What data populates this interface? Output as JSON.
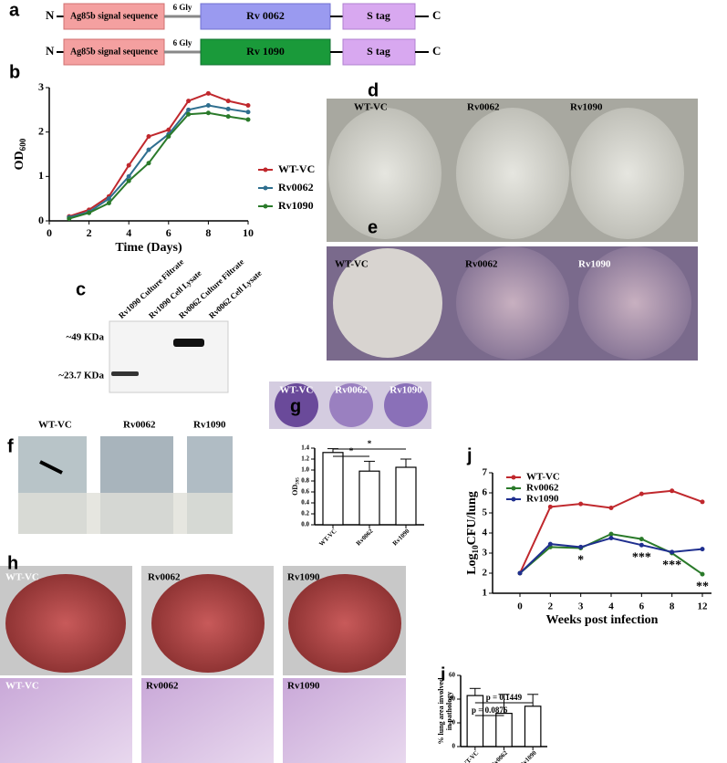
{
  "panel_labels": [
    "a",
    "b",
    "c",
    "d",
    "e",
    "f",
    "g",
    "h",
    "i",
    "j"
  ],
  "construct": {
    "rows": [
      {
        "n": "N",
        "signal": "Ag85b signal sequence",
        "linker": "6 Gly",
        "gene": "Rv 0062",
        "tag": "S tag",
        "c": "C"
      },
      {
        "n": "N",
        "signal": "Ag85b signal sequence",
        "linker": "6 Gly",
        "gene": "Rv 1090",
        "tag": "S tag",
        "c": "C"
      }
    ]
  },
  "blot": {
    "lanes": [
      "Rv1090 Culture Filtrate",
      "Rv1090 Cell Lysate",
      "Rv0062 Culture Filtrate",
      "Rv0062 Cell Lysate"
    ],
    "markers": [
      "~49 KDa",
      "~23.7 KDa"
    ]
  },
  "photos": {
    "d": [
      "WT-VC",
      "Rv0062",
      "Rv1090"
    ],
    "e": [
      "WT-VC",
      "Rv0062",
      "Rv1090"
    ],
    "f": [
      "WT-VC",
      "Rv0062",
      "Rv1090"
    ],
    "g": [
      "WT-VC",
      "Rv0062",
      "Rv1090"
    ],
    "h_gross": [
      "WT-VC",
      "Rv0062",
      "Rv1090"
    ],
    "h_histology": [
      "WT-VC",
      "Rv0062",
      "Rv1090"
    ]
  },
  "chart_data": [
    {
      "type": "line",
      "x": [
        1,
        2,
        3,
        4,
        5,
        6,
        7,
        8,
        9,
        10
      ],
      "xlim": [
        0,
        10
      ],
      "xticks": [
        0,
        2,
        4,
        6,
        8,
        10
      ],
      "ylim": [
        0,
        3
      ],
      "yticks": [
        0,
        1,
        2,
        3
      ],
      "xlabel": "Time (Days)",
      "ylabel": [
        "OD",
        "600"
      ],
      "legend": "right",
      "series": [
        {
          "name": "WT-VC",
          "color": "#c0282d",
          "values": [
            0.1,
            0.25,
            0.55,
            1.25,
            1.9,
            2.05,
            2.7,
            2.87,
            2.7,
            2.6
          ]
        },
        {
          "name": "Rv0062",
          "color": "#2f6f8f",
          "values": [
            0.08,
            0.2,
            0.5,
            1.0,
            1.6,
            1.95,
            2.5,
            2.6,
            2.52,
            2.45
          ]
        },
        {
          "name": "Rv1090",
          "color": "#2a7a2a",
          "values": [
            0.05,
            0.18,
            0.4,
            0.9,
            1.3,
            1.9,
            2.4,
            2.43,
            2.35,
            2.28
          ]
        }
      ]
    },
    {
      "type": "bar",
      "categories": [
        "WT-VC",
        "Rv0062",
        "Rv1090"
      ],
      "values": [
        1.32,
        0.98,
        1.05
      ],
      "errors": [
        0.07,
        0.18,
        0.15
      ],
      "color": "#ffffff",
      "ylim": [
        0,
        1.4
      ],
      "yticks": [
        {
          "value": 0,
          "label": "0.0"
        },
        0.2,
        0.4,
        0.6,
        0.8,
        {
          "value": 1,
          "label": "1.0"
        },
        1.2,
        1.4
      ],
      "ylabel": [
        "OD",
        "595"
      ],
      "annotations": [
        {
          "text": "*",
          "from": 0,
          "to": 1
        },
        {
          "text": "*",
          "from": 0,
          "to": 2
        }
      ]
    },
    {
      "type": "bar",
      "categories": [
        "WT-VC",
        "Rv0062",
        "Rv1090"
      ],
      "values": [
        43,
        28,
        34
      ],
      "errors": [
        6,
        16,
        10
      ],
      "color": "#ffffff",
      "ylim": [
        0,
        60
      ],
      "yticks": [
        0,
        20,
        40,
        60
      ],
      "ylabel": [
        "% lung area involved",
        "in pathology"
      ],
      "annotations": [
        {
          "text": "p = 0.0876",
          "from": 0,
          "to": 1
        },
        {
          "text": "p = 0.1449",
          "from": 0,
          "to": 2
        }
      ]
    },
    {
      "type": "line",
      "categories": [
        "0",
        "2",
        "3",
        "4",
        "6",
        "8",
        "12"
      ],
      "ylim": [
        1,
        7
      ],
      "yticks": [
        1,
        2,
        3,
        4,
        5,
        6,
        7
      ],
      "xlabel": "Weeks post infection",
      "ylabel": [
        "Log",
        "10",
        "CFU/lung"
      ],
      "legend": "upper left",
      "series": [
        {
          "name": "WT-VC",
          "color": "#c0282d",
          "values": [
            2.0,
            5.3,
            5.45,
            5.25,
            5.95,
            6.1,
            5.55
          ]
        },
        {
          "name": "Rv0062",
          "color": "#2a7a2a",
          "values": [
            2.0,
            3.3,
            3.25,
            3.95,
            3.7,
            3.0,
            1.95
          ]
        },
        {
          "name": "Rv1090",
          "color": "#1f2f8f",
          "values": [
            2.0,
            3.45,
            3.3,
            3.75,
            3.4,
            3.05,
            3.2
          ]
        }
      ],
      "annotations": [
        {
          "text": "*",
          "at": 2
        },
        {
          "text": "***",
          "at": 4
        },
        {
          "text": "***",
          "at": 5
        },
        {
          "text": "**",
          "at": 6
        }
      ]
    }
  ]
}
